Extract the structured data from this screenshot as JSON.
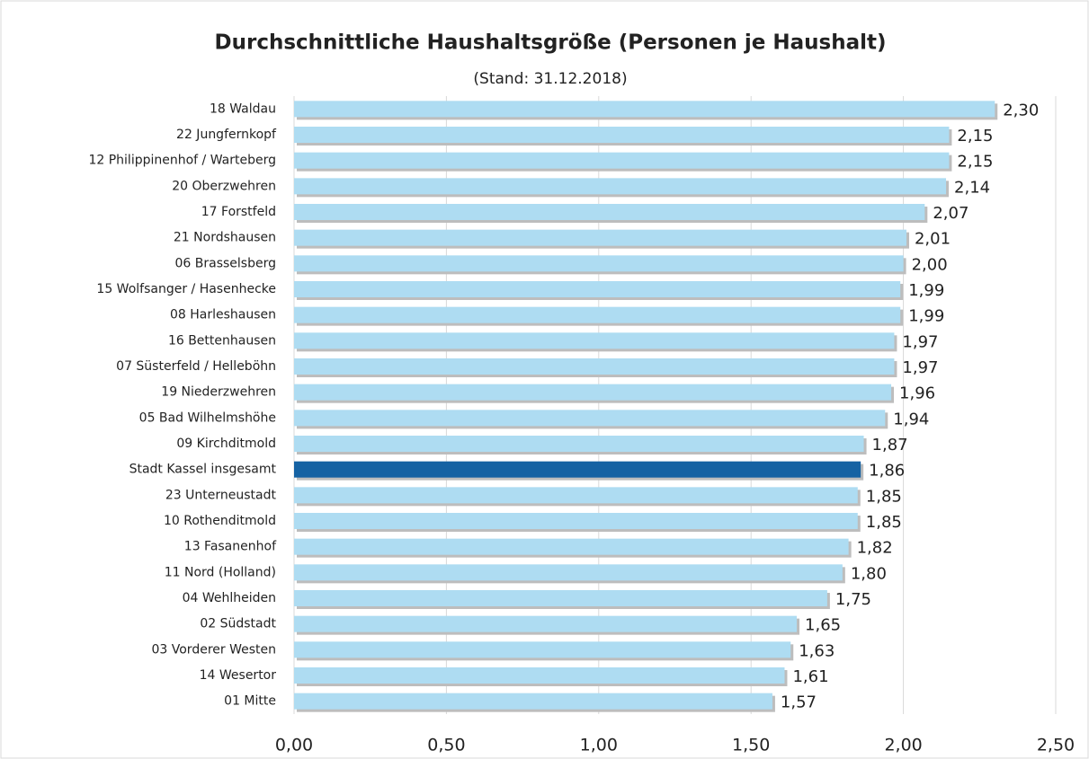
{
  "chart_data": {
    "type": "barh",
    "title": "Durchschnittliche Haushaltsgröße (Personen je Haushalt)",
    "subtitle": "(Stand: 31.12.2018)",
    "categories": [
      "18 Waldau",
      "22 Jungfernkopf",
      "12 Philippinenhof / Warteberg",
      "20 Oberzwehren",
      "17 Forstfeld",
      "21 Nordshausen",
      "06 Brasselsberg",
      "15 Wolfsanger / Hasenhecke",
      "08 Harleshausen",
      "16 Bettenhausen",
      "07 Süsterfeld / Helleböhn",
      "19 Niederzwehren",
      "05 Bad Wilhelmshöhe",
      "09 Kirchditmold",
      "Stadt Kassel insgesamt",
      "23 Unterneustadt",
      "10 Rothenditmold",
      "13 Fasanenhof",
      "11 Nord (Holland)",
      "04 Wehlheiden",
      "02 Südstadt",
      "03 Vorderer Westen",
      "14 Wesertor",
      "01 Mitte"
    ],
    "values": [
      2.3,
      2.15,
      2.15,
      2.14,
      2.07,
      2.01,
      2.0,
      1.99,
      1.99,
      1.97,
      1.97,
      1.96,
      1.94,
      1.87,
      1.86,
      1.85,
      1.85,
      1.82,
      1.8,
      1.75,
      1.65,
      1.63,
      1.61,
      1.57
    ],
    "value_labels": [
      "2,30",
      "2,15",
      "2,15",
      "2,14",
      "2,07",
      "2,01",
      "2,00",
      "1,99",
      "1,99",
      "1,97",
      "1,97",
      "1,96",
      "1,94",
      "1,87",
      "1,86",
      "1,85",
      "1,85",
      "1,82",
      "1,80",
      "1,75",
      "1,65",
      "1,63",
      "1,61",
      "1,57"
    ],
    "colors": [
      "#aedcf2",
      "#aedcf2",
      "#aedcf2",
      "#aedcf2",
      "#aedcf2",
      "#aedcf2",
      "#aedcf2",
      "#aedcf2",
      "#aedcf2",
      "#aedcf2",
      "#aedcf2",
      "#aedcf2",
      "#aedcf2",
      "#aedcf2",
      "#1562a3",
      "#aedcf2",
      "#aedcf2",
      "#aedcf2",
      "#aedcf2",
      "#aedcf2",
      "#aedcf2",
      "#aedcf2",
      "#aedcf2",
      "#aedcf2"
    ],
    "xlim": [
      0,
      2.5
    ],
    "xticks": [
      {
        "value": 0,
        "label": "0,00"
      },
      {
        "value": 0.5,
        "label": "0,50"
      },
      {
        "value": 1,
        "label": "1,00"
      },
      {
        "value": 1.5,
        "label": "1,50"
      },
      {
        "value": 2,
        "label": "2,00"
      },
      {
        "value": 2.5,
        "label": "2,50"
      }
    ],
    "grid": true
  }
}
